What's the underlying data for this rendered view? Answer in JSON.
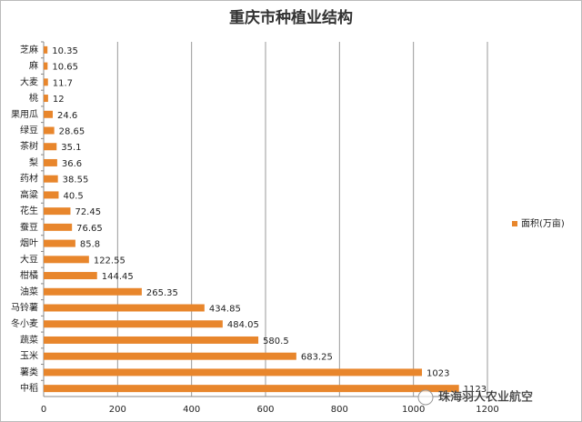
{
  "chart_data": {
    "type": "bar",
    "orientation": "horizontal",
    "title": "重庆市种植业结构",
    "categories": [
      "芝麻",
      "麻",
      "大麦",
      "桃",
      "果用瓜",
      "绿豆",
      "茶树",
      "梨",
      "药材",
      "高粱",
      "花生",
      "蚕豆",
      "烟叶",
      "大豆",
      "柑橘",
      "油菜",
      "马铃薯",
      "冬小麦",
      "蔬菜",
      "玉米",
      "薯类",
      "中稻"
    ],
    "series": [
      {
        "name": "面积(万亩)",
        "color": "#e8862c",
        "values": [
          10.35,
          10.65,
          11.7,
          12,
          24.6,
          28.65,
          35.1,
          36.6,
          38.55,
          40.5,
          72.45,
          76.65,
          85.8,
          122.55,
          144.45,
          265.35,
          434.85,
          484.05,
          580.5,
          683.25,
          1023,
          1123
        ]
      }
    ],
    "xlim": [
      0,
      1200
    ],
    "xticks": [
      0,
      200,
      400,
      600,
      800,
      1000,
      1200
    ],
    "grid": true,
    "legend": "right",
    "annotation": "珠海羽人农业航空"
  }
}
